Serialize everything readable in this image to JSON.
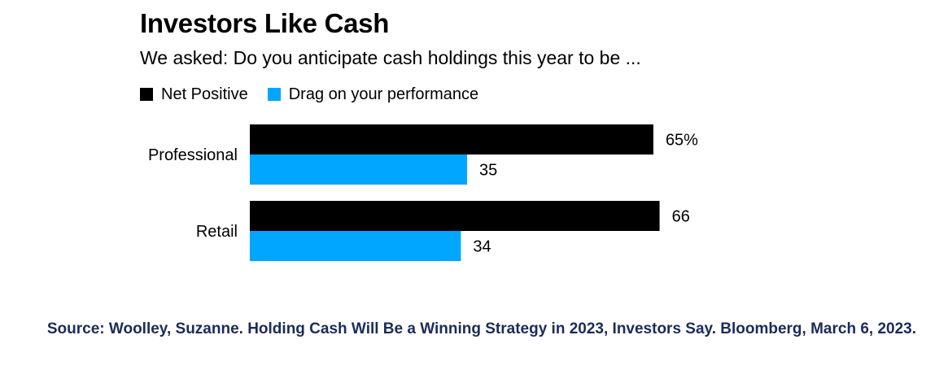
{
  "chart_data": {
    "type": "bar",
    "orientation": "horizontal",
    "title": "Investors Like Cash",
    "subtitle": "We asked: Do you anticipate cash holdings this year to be ...",
    "categories": [
      "Professional",
      "Retail"
    ],
    "series": [
      {
        "name": "Net Positive",
        "color": "#000000",
        "values": [
          65,
          66
        ],
        "labels": [
          "65%",
          "66"
        ]
      },
      {
        "name": "Drag on your performance",
        "color": "#00a6ff",
        "values": [
          35,
          34
        ],
        "labels": [
          "35",
          "34"
        ]
      }
    ],
    "xlim": [
      0,
      100
    ],
    "grid": false,
    "legend_position": "top-left"
  },
  "source": "Source: Woolley, Suzanne. Holding Cash Will Be a Winning Strategy in 2023, Investors Say. Bloomberg, March 6, 2023."
}
